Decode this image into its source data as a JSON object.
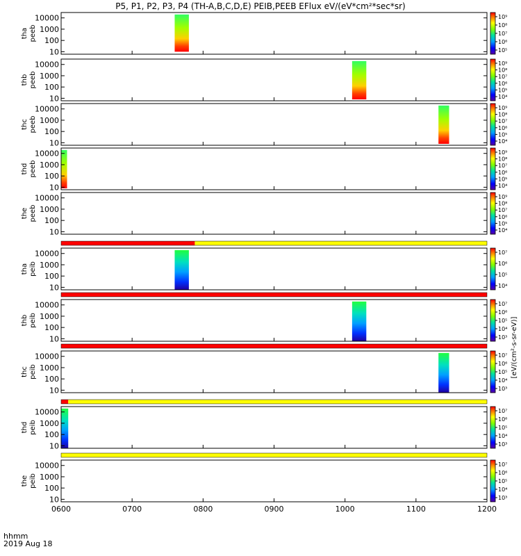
{
  "header": {
    "title": "P5, P1, P2, P3, P4 (TH-A,B,C,D,E) PEIB,PEEB EFlux eV/(eV*cm²*sec*sr)",
    "time_label": "hhmm",
    "date_label": "2019 Aug 18"
  },
  "colorbar_unit": "[eV/(cm²-s-sr-eV)]",
  "chart_data": {
    "type": "heatmap",
    "x_ticks": [
      "0600",
      "0700",
      "0800",
      "0900",
      "1000",
      "1100",
      "1200"
    ],
    "x_range_hours": [
      6,
      12
    ],
    "y_ticks": [
      "10",
      "100",
      "1000",
      "10000"
    ],
    "y_range_eV": [
      6,
      30000
    ],
    "panels": [
      {
        "probe": "tha",
        "product": "peeb",
        "cbar_ticks": [
          "10⁵",
          "10⁶",
          "10⁷",
          "10⁸",
          "10⁹"
        ],
        "blocks": [
          {
            "t0": "07:36",
            "t1": "07:48",
            "palette": "hot",
            "lo": "10",
            "hi": "20000"
          }
        ]
      },
      {
        "probe": "thb",
        "product": "peeb",
        "cbar_ticks": [
          "10⁴",
          "10⁵",
          "10⁶",
          "10⁷",
          "10⁸",
          "10⁹"
        ],
        "blocks": [
          {
            "t0": "10:06",
            "t1": "10:18",
            "palette": "hot",
            "lo": "8",
            "hi": "20000"
          }
        ]
      },
      {
        "probe": "thc",
        "product": "peeb",
        "cbar_ticks": [
          "10⁴",
          "10⁵",
          "10⁶",
          "10⁷",
          "10⁸",
          "10⁹"
        ],
        "blocks": [
          {
            "t0": "11:19",
            "t1": "11:28",
            "palette": "hot",
            "lo": "8",
            "hi": "20000"
          }
        ]
      },
      {
        "probe": "thd",
        "product": "peeb",
        "cbar_ticks": [
          "10⁴",
          "10⁵",
          "10⁶",
          "10⁷",
          "10⁸",
          "10⁹"
        ],
        "blocks": [
          {
            "t0": "06:00",
            "t1": "06:05",
            "palette": "hot",
            "lo": "8",
            "hi": "20000"
          }
        ]
      },
      {
        "probe": "the",
        "product": "peeb",
        "cbar_ticks": [
          "10⁴",
          "10⁵",
          "10⁶",
          "10⁷",
          "10⁸",
          "10⁹"
        ],
        "blocks": []
      },
      {
        "probe": "tha",
        "product": "peib",
        "cbar_ticks": [
          "10⁴",
          "10⁵",
          "10⁶",
          "10⁷"
        ],
        "blocks": [
          {
            "t0": "07:36",
            "t1": "07:48",
            "palette": "ion",
            "lo": "6",
            "hi": "20000"
          }
        ]
      },
      {
        "probe": "thb",
        "product": "peib",
        "cbar_ticks": [
          "10³",
          "10⁴",
          "10⁵",
          "10⁶",
          "10⁷"
        ],
        "blocks": [
          {
            "t0": "10:06",
            "t1": "10:18",
            "palette": "ion",
            "lo": "6",
            "hi": "20000"
          }
        ]
      },
      {
        "probe": "thc",
        "product": "peib",
        "cbar_ticks": [
          "10³",
          "10⁴",
          "10⁵",
          "10⁶",
          "10⁷"
        ],
        "blocks": [
          {
            "t0": "11:19",
            "t1": "11:28",
            "palette": "ion",
            "lo": "6",
            "hi": "20000"
          }
        ]
      },
      {
        "probe": "thd",
        "product": "peib",
        "cbar_ticks": [
          "10³",
          "10⁴",
          "10⁵",
          "10⁶",
          "10⁷"
        ],
        "blocks": [
          {
            "t0": "06:00",
            "t1": "06:06",
            "palette": "ion",
            "lo": "6",
            "hi": "20000"
          }
        ]
      },
      {
        "probe": "the",
        "product": "peib",
        "cbar_ticks": [
          "10³",
          "10⁴",
          "10⁵",
          "10⁶",
          "10⁷"
        ],
        "blocks": []
      }
    ],
    "mode_bars": [
      {
        "after_panel": 5,
        "segments": [
          {
            "t0": "06:00",
            "t1": "07:53",
            "color": "#ff0000"
          },
          {
            "t0": "07:53",
            "t1": "12:00",
            "color": "#ffff00"
          }
        ]
      },
      {
        "after_panel": 6,
        "segments": [
          {
            "t0": "06:00",
            "t1": "12:00",
            "color": "#ff0000"
          }
        ]
      },
      {
        "after_panel": 7,
        "segments": [
          {
            "t0": "06:00",
            "t1": "12:00",
            "color": "#ff0000"
          }
        ]
      },
      {
        "after_panel": 8,
        "segments": [
          {
            "t0": "06:00",
            "t1": "06:06",
            "color": "#ff0000"
          },
          {
            "t0": "06:06",
            "t1": "12:00",
            "color": "#ffff00"
          }
        ]
      },
      {
        "after_panel": 9,
        "segments": [
          {
            "t0": "06:00",
            "t1": "12:00",
            "color": "#ffff00"
          }
        ]
      }
    ]
  }
}
